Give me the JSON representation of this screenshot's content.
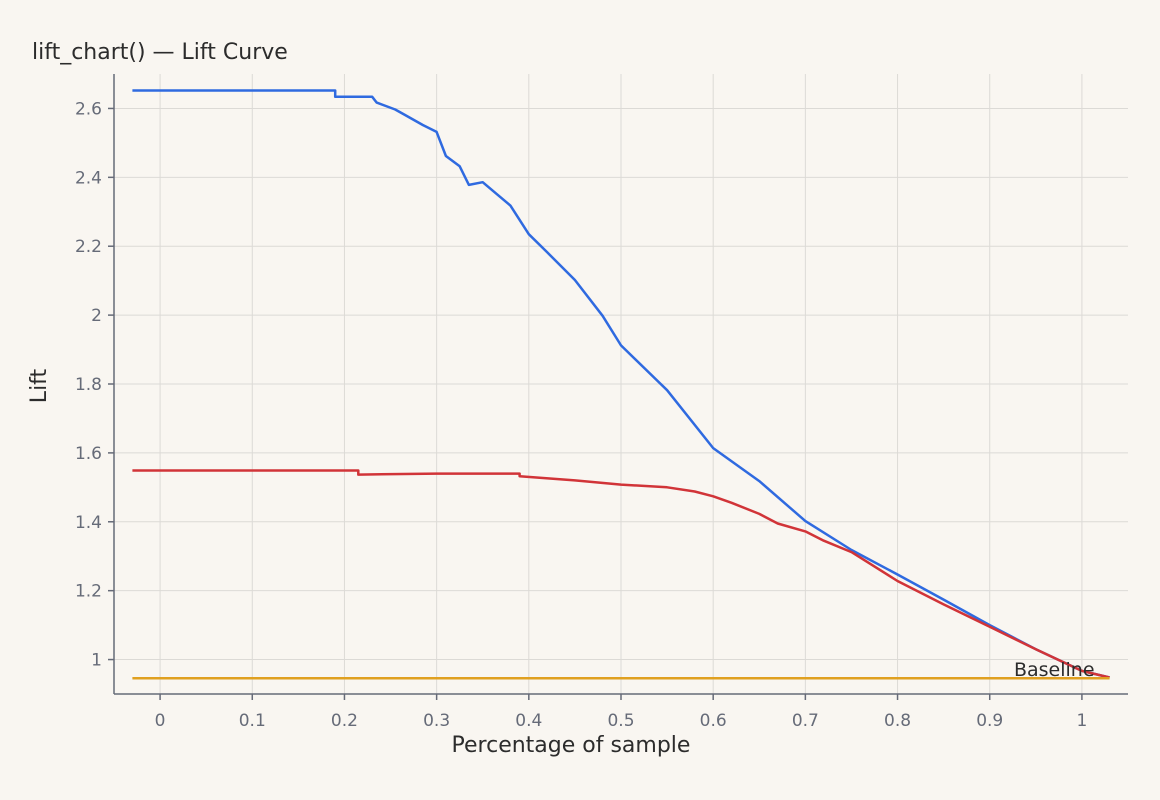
{
  "chart_data": {
    "type": "line",
    "title": "lift_chart() — Lift Curve",
    "xlabel": "Percentage of sample",
    "ylabel": "Lift",
    "xlim": [
      -0.05,
      1.05
    ],
    "ylim": [
      0.9,
      2.7
    ],
    "xticks": [
      0,
      0.1,
      0.2,
      0.3,
      0.4,
      0.5,
      0.6,
      0.7,
      0.8,
      0.9,
      1
    ],
    "yticks": [
      1,
      1.2,
      1.4,
      1.6,
      1.8,
      2,
      2.2,
      2.4,
      2.6
    ],
    "xtick_labels": [
      "0",
      "0.1",
      "0.2",
      "0.3",
      "0.4",
      "0.5",
      "0.6",
      "0.7",
      "0.8",
      "0.9",
      "1"
    ],
    "ytick_labels": [
      "1",
      "1.2",
      "1.4",
      "1.6",
      "1.8",
      "2",
      "2.2",
      "2.4",
      "2.6"
    ],
    "grid": true,
    "colors": {
      "series_a": "#2f6ae0",
      "series_b": "#d13438",
      "baseline": "#e0a020"
    },
    "series": [
      {
        "color": "#2f6ae0",
        "x": [
          -0.03,
          0.0,
          0.1,
          0.19,
          0.19,
          0.23,
          0.235,
          0.255,
          0.265,
          0.285,
          0.3,
          0.31,
          0.325,
          0.335,
          0.35,
          0.365,
          0.38,
          0.4,
          0.42,
          0.45,
          0.48,
          0.5,
          0.55,
          0.6,
          0.65,
          0.7,
          0.75,
          0.8,
          0.85,
          0.9,
          0.95,
          1.0,
          1.03
        ],
        "y": [
          2.652,
          2.652,
          2.652,
          2.652,
          2.634,
          2.634,
          2.617,
          2.597,
          2.582,
          2.552,
          2.532,
          2.462,
          2.432,
          2.378,
          2.386,
          2.352,
          2.318,
          2.235,
          2.182,
          2.102,
          1.998,
          1.912,
          1.782,
          1.614,
          1.518,
          1.402,
          1.318,
          1.247,
          1.174,
          1.1,
          1.03,
          0.967,
          0.948
        ]
      },
      {
        "color": "#d13438",
        "x": [
          -0.03,
          0.0,
          0.1,
          0.215,
          0.215,
          0.3,
          0.39,
          0.39,
          0.45,
          0.5,
          0.55,
          0.58,
          0.6,
          0.62,
          0.65,
          0.67,
          0.7,
          0.72,
          0.75,
          0.8,
          0.85,
          0.9,
          0.95,
          1.0,
          1.03
        ],
        "y": [
          1.549,
          1.549,
          1.549,
          1.549,
          1.537,
          1.54,
          1.54,
          1.532,
          1.52,
          1.508,
          1.5,
          1.488,
          1.474,
          1.455,
          1.423,
          1.395,
          1.372,
          1.345,
          1.312,
          1.228,
          1.16,
          1.095,
          1.03,
          0.967,
          0.948
        ]
      },
      {
        "name": "Baseline",
        "color": "#e0a020",
        "x": [
          -0.03,
          1.03
        ],
        "y": [
          0.946,
          0.946
        ]
      }
    ],
    "annotations": [
      {
        "text": "Baseline",
        "x": 0.97,
        "y": 0.946
      }
    ]
  }
}
